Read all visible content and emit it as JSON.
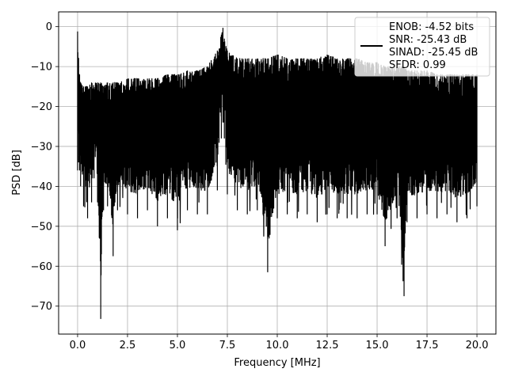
{
  "chart_data": {
    "type": "line",
    "xlabel": "Frequency [MHz]",
    "ylabel": "PSD [dB]",
    "xlim": [
      -0.95,
      20.95
    ],
    "ylim": [
      -77,
      3.7
    ],
    "xticks": [
      0.0,
      2.5,
      5.0,
      7.5,
      10.0,
      12.5,
      15.0,
      17.5,
      20.0
    ],
    "xtick_labels": [
      "0.0",
      "2.5",
      "5.0",
      "7.5",
      "10.0",
      "12.5",
      "15.0",
      "17.5",
      "20.0"
    ],
    "yticks": [
      0,
      -10,
      -20,
      -30,
      -40,
      -50,
      -60,
      -70
    ],
    "ytick_labels": [
      "0",
      "−10",
      "−20",
      "−30",
      "−40",
      "−50",
      "−60",
      "−70"
    ],
    "grid": true,
    "legend_position": "upper-right",
    "legend": {
      "lines": [
        "ENOB: -4.52 bits",
        "SNR: -25.43 dB",
        "SINAD: -25.45 dB",
        "SFDR: 0.99"
      ]
    },
    "series": [
      {
        "color": "#000000",
        "x": [
          0.0,
          0.05,
          0.1,
          0.15,
          0.3,
          0.5,
          0.7,
          1.0,
          1.16,
          1.3,
          1.5,
          1.78,
          2.0,
          2.5,
          3.0,
          3.5,
          4.0,
          4.5,
          5.0,
          5.5,
          6.0,
          6.5,
          7.0,
          7.2,
          7.28,
          7.35,
          7.5,
          8.0,
          8.5,
          9.0,
          9.52,
          10.0,
          10.5,
          11.0,
          11.5,
          12.0,
          12.5,
          13.0,
          13.5,
          14.0,
          14.5,
          15.0,
          15.4,
          16.0,
          16.35,
          16.5,
          17.0,
          17.5,
          18.0,
          18.5,
          19.0,
          19.5,
          20.0
        ],
        "upper": [
          -1.2,
          -8,
          -12,
          -14,
          -15,
          -15,
          -14,
          -14,
          -14,
          -15,
          -14,
          -14,
          -14,
          -13,
          -13,
          -13,
          -13,
          -12,
          -12,
          -11,
          -11,
          -10,
          -6,
          -2,
          -0.3,
          -3,
          -6,
          -8,
          -8,
          -8,
          -8,
          -7,
          -8,
          -8,
          -8,
          -8,
          -7,
          -8,
          -8,
          -8,
          -9,
          -9,
          -10,
          -10,
          -10,
          -11,
          -11,
          -11,
          -12,
          -12,
          -12,
          -12,
          -12
        ],
        "lower": [
          -36,
          -34,
          -36,
          -40,
          -45,
          -48,
          -44,
          -44,
          -73.2,
          -46,
          -45,
          -57.5,
          -46,
          -47,
          -48,
          -46,
          -50,
          -48,
          -51,
          -46,
          -47,
          -47,
          -41,
          -28,
          -24,
          -28,
          -42,
          -46,
          -47,
          -46,
          -61.5,
          -48,
          -47,
          -48,
          -47,
          -49,
          -47,
          -48,
          -48,
          -48,
          -47,
          -47,
          -55,
          -48,
          -67.5,
          -49,
          -48,
          -47,
          -48,
          -47,
          -49,
          -48,
          -45
        ]
      }
    ]
  }
}
